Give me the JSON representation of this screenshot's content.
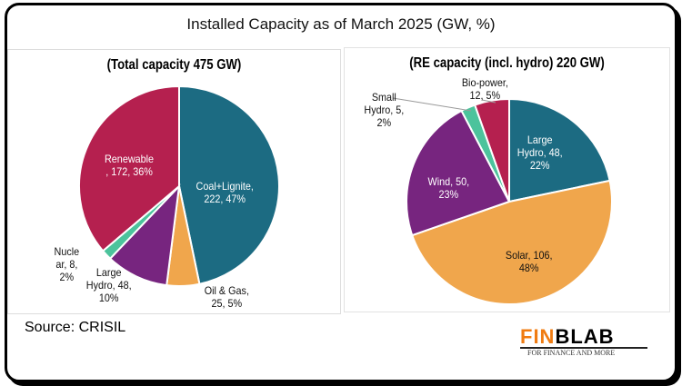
{
  "title": "Installed Capacity as of March 2025 (GW, %)",
  "source": "Source: CRISIL",
  "logo": {
    "fin": "FIN",
    "blab": "BLAB",
    "tagline": "FOR FINANCE AND MORE"
  },
  "chart_data": [
    {
      "type": "pie",
      "title": "(Total capacity 475 GW)",
      "unit": "GW",
      "slices": [
        {
          "name": "Coal+Lignite",
          "value": 222,
          "pct": 47,
          "color": "#1c6b82",
          "label": [
            "Coal+Lignite,",
            "222, 47%"
          ]
        },
        {
          "name": "Oil & Gas",
          "value": 25,
          "pct": 5,
          "color": "#f0a64c",
          "label": [
            "Oil & Gas,",
            "25, 5%"
          ]
        },
        {
          "name": "Large Hydro",
          "value": 48,
          "pct": 10,
          "color": "#77257f",
          "label": [
            "Large",
            "Hydro, 48,",
            "10%"
          ]
        },
        {
          "name": "Nuclear",
          "value": 8,
          "pct": 2,
          "color": "#4cc39c",
          "label": [
            "Nucle",
            "ar, 8,",
            "2%"
          ]
        },
        {
          "name": "Renewable",
          "value": 172,
          "pct": 36,
          "color": "#b5204f",
          "label": [
            "Renewable",
            ", 172, 36%"
          ]
        }
      ]
    },
    {
      "type": "pie",
      "title": "(RE capacity (incl. hydro) 220 GW)",
      "unit": "GW",
      "slices": [
        {
          "name": "Large Hydro",
          "value": 48,
          "pct": 22,
          "color": "#1c6b82",
          "label": [
            "Large",
            "Hydro, 48,",
            "22%"
          ]
        },
        {
          "name": "Solar",
          "value": 106,
          "pct": 48,
          "color": "#f0a64c",
          "label": [
            "Solar, 106,",
            "48%"
          ]
        },
        {
          "name": "Wind",
          "value": 50,
          "pct": 23,
          "color": "#77257f",
          "label": [
            "Wind, 50,",
            "23%"
          ]
        },
        {
          "name": "Small Hydro",
          "value": 5,
          "pct": 2,
          "color": "#4cc39c",
          "label": [
            "Small",
            "Hydro, 5,",
            "2%"
          ]
        },
        {
          "name": "Bio-power",
          "value": 12,
          "pct": 5,
          "color": "#b5204f",
          "label": [
            "Bio-power,",
            "12, 5%"
          ]
        }
      ]
    }
  ]
}
